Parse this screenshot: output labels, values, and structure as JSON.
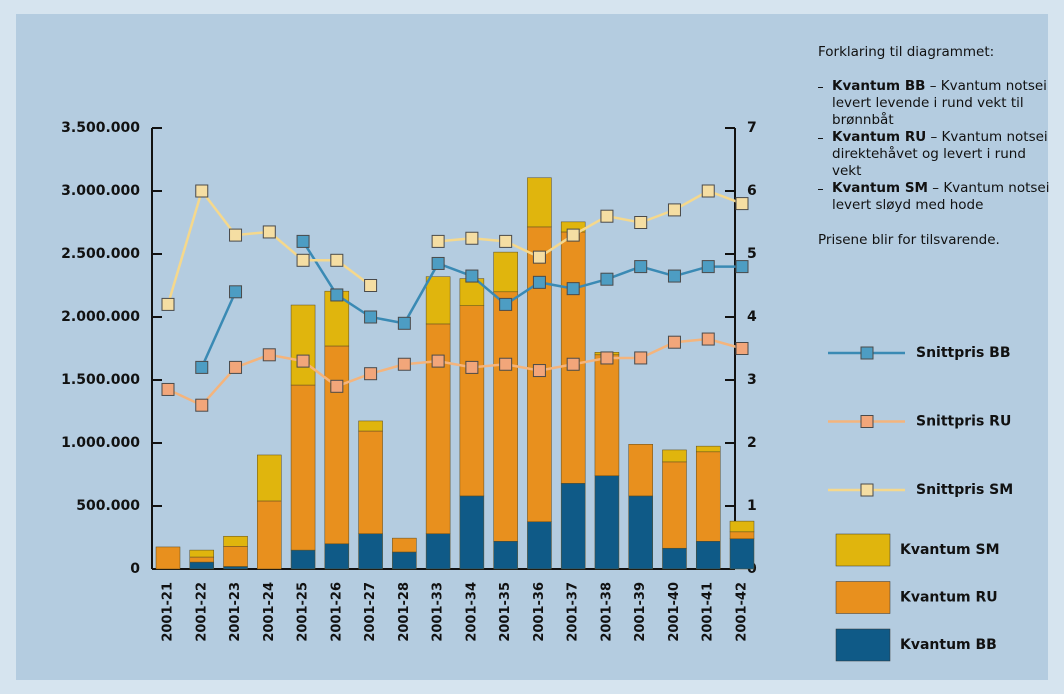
{
  "chart_data": {
    "type": "bar",
    "categories": [
      "2001-21",
      "2001-22",
      "2001-23",
      "2001-24",
      "2001-25",
      "2001-26",
      "2001-27",
      "2001-28",
      "2001-33",
      "2001-34",
      "2001-35",
      "2001-36",
      "2001-37",
      "2001-38",
      "2001-39",
      "2001-40",
      "2001-41",
      "2001-42"
    ],
    "series": [
      {
        "name": "Kvantum BB",
        "type": "bar",
        "color": "#0f5a87",
        "values": [
          0,
          55000,
          20000,
          0,
          150000,
          200000,
          280000,
          135000,
          280000,
          580000,
          220000,
          375000,
          680000,
          740000,
          580000,
          165000,
          220000,
          240000
        ]
      },
      {
        "name": "Kvantum RU",
        "type": "bar",
        "color": "#e8901e",
        "values": [
          175000,
          40000,
          160000,
          540000,
          1310000,
          1570000,
          815000,
          110000,
          1665000,
          1510000,
          1980000,
          2340000,
          1995000,
          960000,
          410000,
          685000,
          710000,
          55000
        ]
      },
      {
        "name": "Kvantum SM",
        "type": "bar",
        "color": "#e0b50d",
        "values": [
          0,
          55000,
          80000,
          365000,
          635000,
          435000,
          80000,
          0,
          375000,
          215000,
          315000,
          390000,
          80000,
          20000,
          0,
          95000,
          45000,
          85000
        ]
      },
      {
        "name": "Snittpris BB",
        "type": "line",
        "axis": "y2",
        "color": "#3a8ab4",
        "marker_color": "#4d9dc3",
        "values": [
          null,
          3.2,
          4.4,
          null,
          5.2,
          4.35,
          4.0,
          3.9,
          4.85,
          4.65,
          4.2,
          4.55,
          4.45,
          4.6,
          4.8,
          4.65,
          4.8,
          4.8
        ]
      },
      {
        "name": "Snittpris RU",
        "type": "line",
        "axis": "y2",
        "color": "#f4b47c",
        "marker_color": "#f2a67a",
        "values": [
          2.85,
          2.6,
          3.2,
          3.4,
          3.3,
          2.9,
          3.1,
          3.25,
          3.3,
          3.2,
          3.25,
          3.15,
          3.25,
          3.35,
          3.35,
          3.6,
          3.65,
          3.5
        ]
      },
      {
        "name": "Snittpris SM",
        "type": "line",
        "axis": "y2",
        "color": "#f5d88c",
        "marker_color": "#f5dea3",
        "values": [
          4.2,
          6.0,
          5.3,
          5.35,
          4.9,
          4.9,
          4.5,
          null,
          5.2,
          5.25,
          5.2,
          4.95,
          5.3,
          5.6,
          5.5,
          5.7,
          6.0,
          5.8
        ]
      }
    ],
    "ylim": [
      0,
      3500000
    ],
    "yticks": [
      0,
      {
        "value": 500000,
        "label": "500.000"
      },
      {
        "value": 1000000,
        "label": "1.000.000"
      },
      {
        "value": 1500000,
        "label": "1.500.000"
      },
      {
        "value": 2000000,
        "label": "2.000.000"
      },
      {
        "value": 2500000,
        "label": "2.500.000"
      },
      {
        "value": 3000000,
        "label": "3.000.000"
      },
      {
        "value": 3500000,
        "label": "3.500.000"
      }
    ],
    "y2lim": [
      0,
      7
    ],
    "y2ticks": [
      0,
      1,
      2,
      3,
      4,
      5,
      6,
      7
    ]
  },
  "explanation": {
    "title": "Forklaring til diagrammet:",
    "items": [
      {
        "term": "Kvantum BB",
        "text": "– Kvantum notsei levert levende i rund vekt til brønnbåt"
      },
      {
        "term": "Kvantum RU",
        "text": "– Kvantum notsei direktehåvet og levert i rund vekt"
      },
      {
        "term": "Kvantum SM",
        "text": "– Kvantum notsei levert sløyd med hode"
      }
    ],
    "note": "Prisene blir for tilsvarende."
  }
}
